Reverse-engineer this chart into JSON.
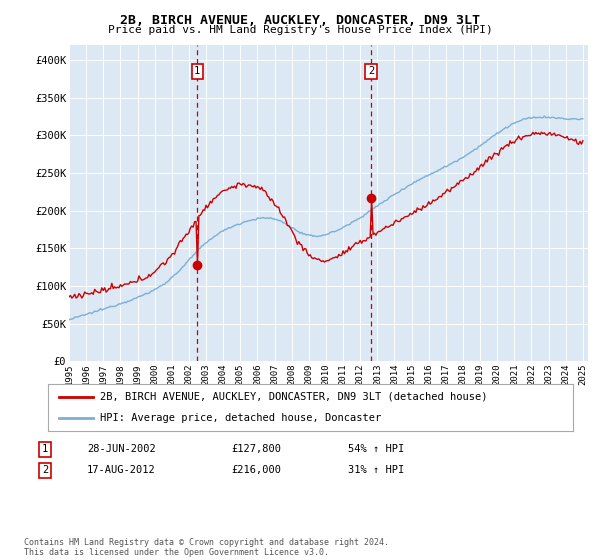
{
  "title": "2B, BIRCH AVENUE, AUCKLEY, DONCASTER, DN9 3LT",
  "subtitle": "Price paid vs. HM Land Registry's House Price Index (HPI)",
  "background_color": "#dce9f5",
  "red_line_color": "#cc0000",
  "blue_line_color": "#7bafd4",
  "marker1_value": 127800,
  "marker2_value": 216000,
  "marker1_year": 2002.49,
  "marker2_year": 2012.63,
  "ylim": [
    0,
    420000
  ],
  "yticks": [
    0,
    50000,
    100000,
    150000,
    200000,
    250000,
    300000,
    350000,
    400000
  ],
  "ytick_labels": [
    "£0",
    "£50K",
    "£100K",
    "£150K",
    "£200K",
    "£250K",
    "£300K",
    "£350K",
    "£400K"
  ],
  "legend_red": "2B, BIRCH AVENUE, AUCKLEY, DONCASTER, DN9 3LT (detached house)",
  "legend_blue": "HPI: Average price, detached house, Doncaster",
  "annotation1_label": "1",
  "annotation1_date": "28-JUN-2002",
  "annotation1_price": "£127,800",
  "annotation1_hpi": "54% ↑ HPI",
  "annotation2_label": "2",
  "annotation2_date": "17-AUG-2012",
  "annotation2_price": "£216,000",
  "annotation2_hpi": "31% ↑ HPI",
  "footnote": "Contains HM Land Registry data © Crown copyright and database right 2024.\nThis data is licensed under the Open Government Licence v3.0."
}
